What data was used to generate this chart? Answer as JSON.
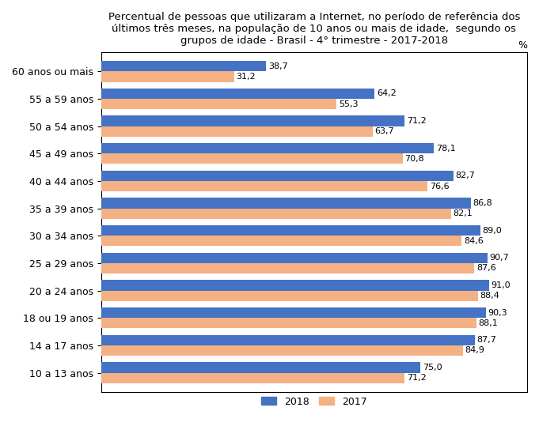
{
  "title": "Percentual de pessoas que utilizaram a Internet, no período de referência dos\núltimos três meses, na população de 10 anos ou mais de idade,  segundo os\ngrupos de idade - Brasil - 4° trimestre - 2017-2018",
  "categories": [
    "60 anos ou mais",
    "55 a 59 anos",
    "50 a 54 anos",
    "45 a 49 anos",
    "40 a 44 anos",
    "35 a 39 anos",
    "30 a 34 anos",
    "25 a 29 anos",
    "20 a 24 anos",
    "18 ou 19 anos",
    "14 a 17 anos",
    "10 a 13 anos"
  ],
  "values_2018": [
    38.7,
    64.2,
    71.2,
    78.1,
    82.7,
    86.8,
    89.0,
    90.7,
    91.0,
    90.3,
    87.7,
    75.0
  ],
  "values_2017": [
    31.2,
    55.3,
    63.7,
    70.8,
    76.6,
    82.1,
    84.6,
    87.6,
    88.4,
    88.1,
    84.9,
    71.2
  ],
  "labels_2018": [
    "38,7",
    "64,2",
    "71,2",
    "78,1",
    "82,7",
    "86,8",
    "89,0",
    "90,7",
    "91,0",
    "90,3",
    "87,7",
    "75,0"
  ],
  "labels_2017": [
    "31,2",
    "55,3",
    "63,7",
    "70,8",
    "76,6",
    "82,1",
    "84,6",
    "87,6",
    "88,4",
    "88,1",
    "84,9",
    "71,2"
  ],
  "color_2018": "#4472C4",
  "color_2017": "#F4B183",
  "bar_height": 0.38,
  "ylabel": "%",
  "legend_2018": "2018",
  "legend_2017": "2017",
  "xlim": [
    0,
    100
  ],
  "title_fontsize": 9.5,
  "label_fontsize": 9,
  "tick_fontsize": 9,
  "value_fontsize": 8,
  "background_color": "#FFFFFF"
}
